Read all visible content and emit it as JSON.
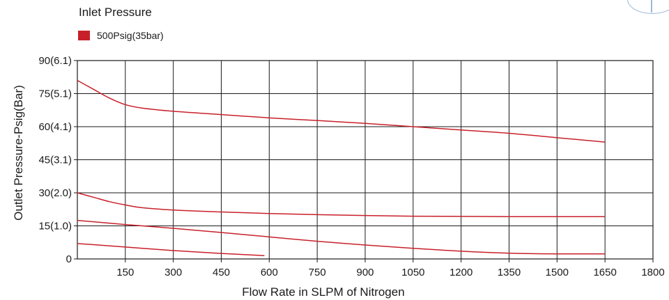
{
  "legend": {
    "title": "Inlet Pressure",
    "items": [
      {
        "label": "500Psig(35bar)",
        "color": "#c8202a"
      }
    ]
  },
  "chart_data": {
    "type": "line",
    "xlabel": "Flow Rate in SLPM of Nitrogen",
    "ylabel": "Outlet Pressure-Psig(Bar)",
    "xlim": [
      0,
      1800
    ],
    "ylim": [
      0,
      90
    ],
    "x_ticks": [
      150,
      300,
      450,
      600,
      750,
      900,
      1050,
      1200,
      1350,
      1500,
      1650,
      1800
    ],
    "y_ticks": [
      {
        "value": 0,
        "label": "0"
      },
      {
        "value": 15,
        "label": "15(1.0)"
      },
      {
        "value": 30,
        "label": "30(2.0)"
      },
      {
        "value": 45,
        "label": "45(3.1)"
      },
      {
        "value": 60,
        "label": "60(4.1)"
      },
      {
        "value": 75,
        "label": "75(5.1)"
      },
      {
        "value": 90,
        "label": "90(6.1)"
      }
    ],
    "grid": true,
    "line_color": "#c8202a",
    "series": [
      {
        "x": [
          0,
          50,
          100,
          150,
          200,
          300,
          450,
          600,
          750,
          900,
          1050,
          1200,
          1350,
          1500,
          1650
        ],
        "y": [
          81,
          77,
          73,
          70,
          68.5,
          67,
          65.5,
          64,
          62.8,
          61.5,
          60,
          58.5,
          57,
          55,
          53
        ]
      },
      {
        "x": [
          0,
          50,
          100,
          150,
          200,
          300,
          450,
          600,
          750,
          900,
          1050,
          1200,
          1350,
          1500,
          1650
        ],
        "y": [
          30,
          28,
          26,
          24.5,
          23.3,
          22.2,
          21.3,
          20.6,
          20.1,
          19.7,
          19.4,
          19.3,
          19.2,
          19.2,
          19.2
        ]
      },
      {
        "x": [
          0,
          150,
          300,
          450,
          600,
          750,
          900,
          1050,
          1200,
          1350,
          1500,
          1650
        ],
        "y": [
          17.5,
          15.6,
          13.9,
          12,
          10,
          8,
          6.3,
          4.8,
          3.5,
          2.6,
          2.3,
          2.3
        ]
      },
      {
        "x": [
          0,
          150,
          300,
          450,
          585
        ],
        "y": [
          7,
          5.4,
          3.8,
          2.5,
          1.5
        ]
      }
    ]
  }
}
